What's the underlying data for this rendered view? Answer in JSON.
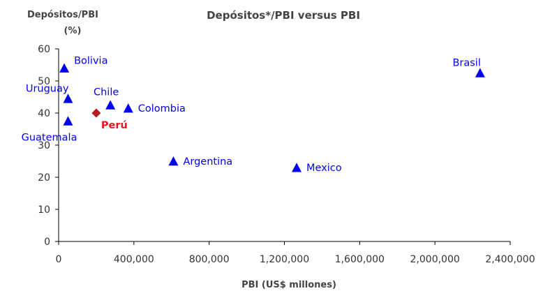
{
  "chart_data": {
    "type": "scatter",
    "title": "Depósitos*/PBI versus PBI",
    "ylabel_line1": "Depósitos/PBI",
    "ylabel_line2": "(%)",
    "xlabel": "PBI (US$ millones)",
    "xlim": [
      0,
      2400000
    ],
    "ylim": [
      0,
      60
    ],
    "x_ticks": [
      "0",
      "400,000",
      "800,000",
      "1,200,000",
      "1,600,000",
      "2,000,000",
      "2,400,000"
    ],
    "x_tick_values": [
      0,
      400000,
      800000,
      1200000,
      1600000,
      2000000,
      2400000
    ],
    "y_ticks": [
      "0",
      "10",
      "20",
      "30",
      "40",
      "50",
      "60"
    ],
    "y_tick_values": [
      0,
      10,
      20,
      30,
      40,
      50,
      60
    ],
    "grid": false,
    "legend": "none",
    "colors": {
      "country": "#0000ee",
      "peru_marker": "#b81c1c",
      "peru_label": "#e01a1a"
    },
    "points": [
      {
        "name": "Bolivia",
        "x": 30000,
        "y": 54.0,
        "marker": "triangle",
        "highlight": false,
        "label_pos": "right-up"
      },
      {
        "name": "Uruguay",
        "x": 50000,
        "y": 44.5,
        "marker": "triangle",
        "highlight": false,
        "label_pos": "left-up"
      },
      {
        "name": "Guatemala",
        "x": 50000,
        "y": 37.5,
        "marker": "triangle",
        "highlight": false,
        "label_pos": "left-down"
      },
      {
        "name": "Chile",
        "x": 275000,
        "y": 42.5,
        "marker": "triangle",
        "highlight": false,
        "label_pos": "above"
      },
      {
        "name": "Colombia",
        "x": 370000,
        "y": 41.5,
        "marker": "triangle",
        "highlight": false,
        "label_pos": "right"
      },
      {
        "name": "Perú",
        "x": 200000,
        "y": 40.0,
        "marker": "diamond",
        "highlight": true,
        "label_pos": "right-down"
      },
      {
        "name": "Argentina",
        "x": 610000,
        "y": 25.0,
        "marker": "triangle",
        "highlight": false,
        "label_pos": "right"
      },
      {
        "name": "Mexico",
        "x": 1265000,
        "y": 23.0,
        "marker": "triangle",
        "highlight": false,
        "label_pos": "right"
      },
      {
        "name": "Brasil",
        "x": 2240000,
        "y": 52.5,
        "marker": "triangle",
        "highlight": false,
        "label_pos": "left-up"
      }
    ]
  }
}
